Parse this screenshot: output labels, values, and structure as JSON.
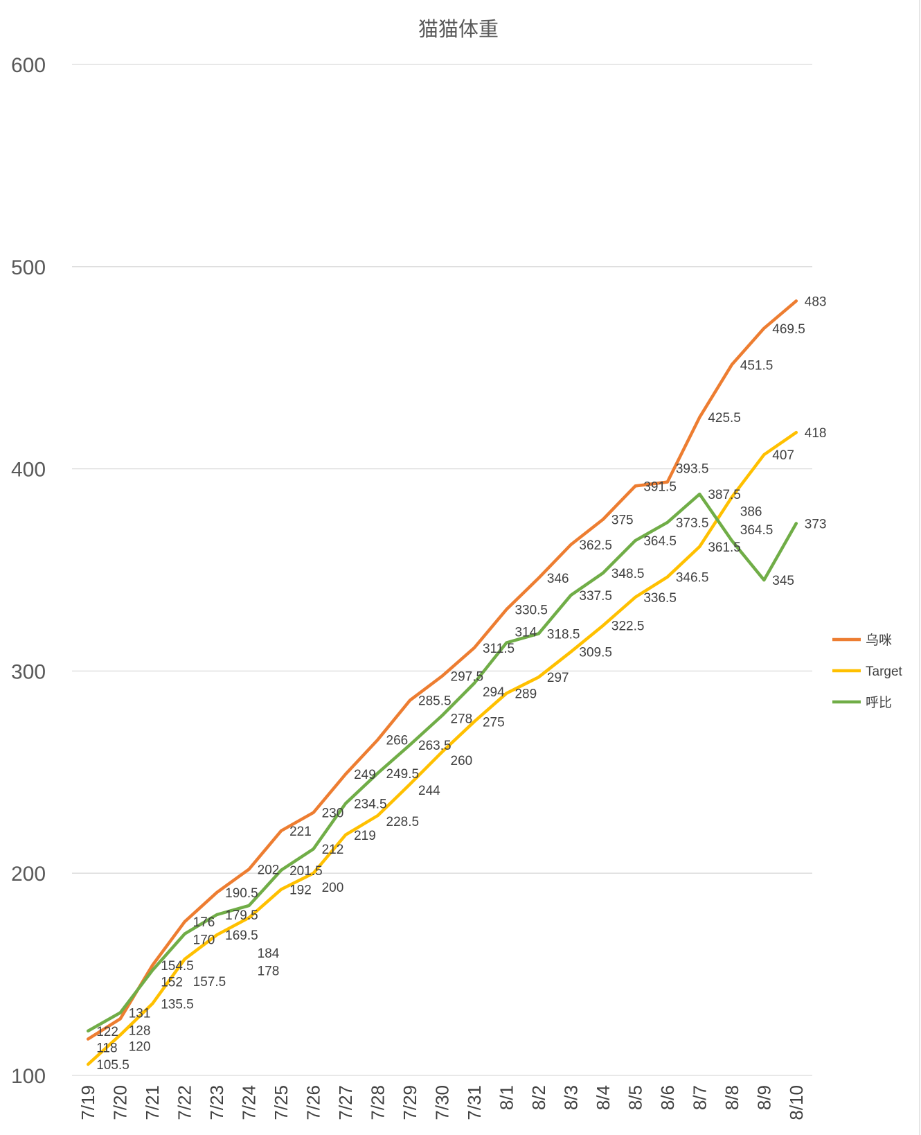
{
  "chart_data": {
    "type": "line",
    "title": "猫猫体重",
    "xlabel": "",
    "ylabel": "",
    "ylim": [
      100,
      600
    ],
    "yticks": [
      "100",
      "200",
      "300",
      "400",
      "500",
      "600"
    ],
    "grid": true,
    "legend_position": "right",
    "categories": [
      "7/19",
      "7/20",
      "7/21",
      "7/22",
      "7/23",
      "7/24",
      "7/25",
      "7/26",
      "7/27",
      "7/28",
      "7/29",
      "7/30",
      "7/31",
      "8/1",
      "8/2",
      "8/3",
      "8/4",
      "8/5",
      "8/6",
      "8/7",
      "8/8",
      "8/9",
      "8/10"
    ],
    "series": [
      {
        "name": "乌咪",
        "color": "#ED7D31",
        "values": [
          118,
          128,
          154.5,
          176,
          190.5,
          202,
          221,
          230,
          249,
          266,
          285.5,
          297.5,
          311.5,
          330.5,
          346,
          362.5,
          375,
          391.5,
          393.5,
          425.5,
          451.5,
          469.5,
          483
        ]
      },
      {
        "name": "Target",
        "color": "#FFC000",
        "values": [
          105.5,
          120,
          135.5,
          157.5,
          169.5,
          178,
          192,
          200,
          219,
          228.5,
          244,
          260,
          275,
          289,
          297,
          309.5,
          322.5,
          336.5,
          346.5,
          361.5,
          386,
          407,
          418
        ]
      },
      {
        "name": "呼比",
        "color": "#70AD47",
        "values": [
          122,
          131,
          152,
          170,
          179.5,
          184,
          201.5,
          212,
          234.5,
          249.5,
          263.5,
          278,
          294,
          314,
          318.5,
          337.5,
          348.5,
          364.5,
          373.5,
          387.5,
          364.5,
          345,
          373
        ]
      }
    ]
  }
}
